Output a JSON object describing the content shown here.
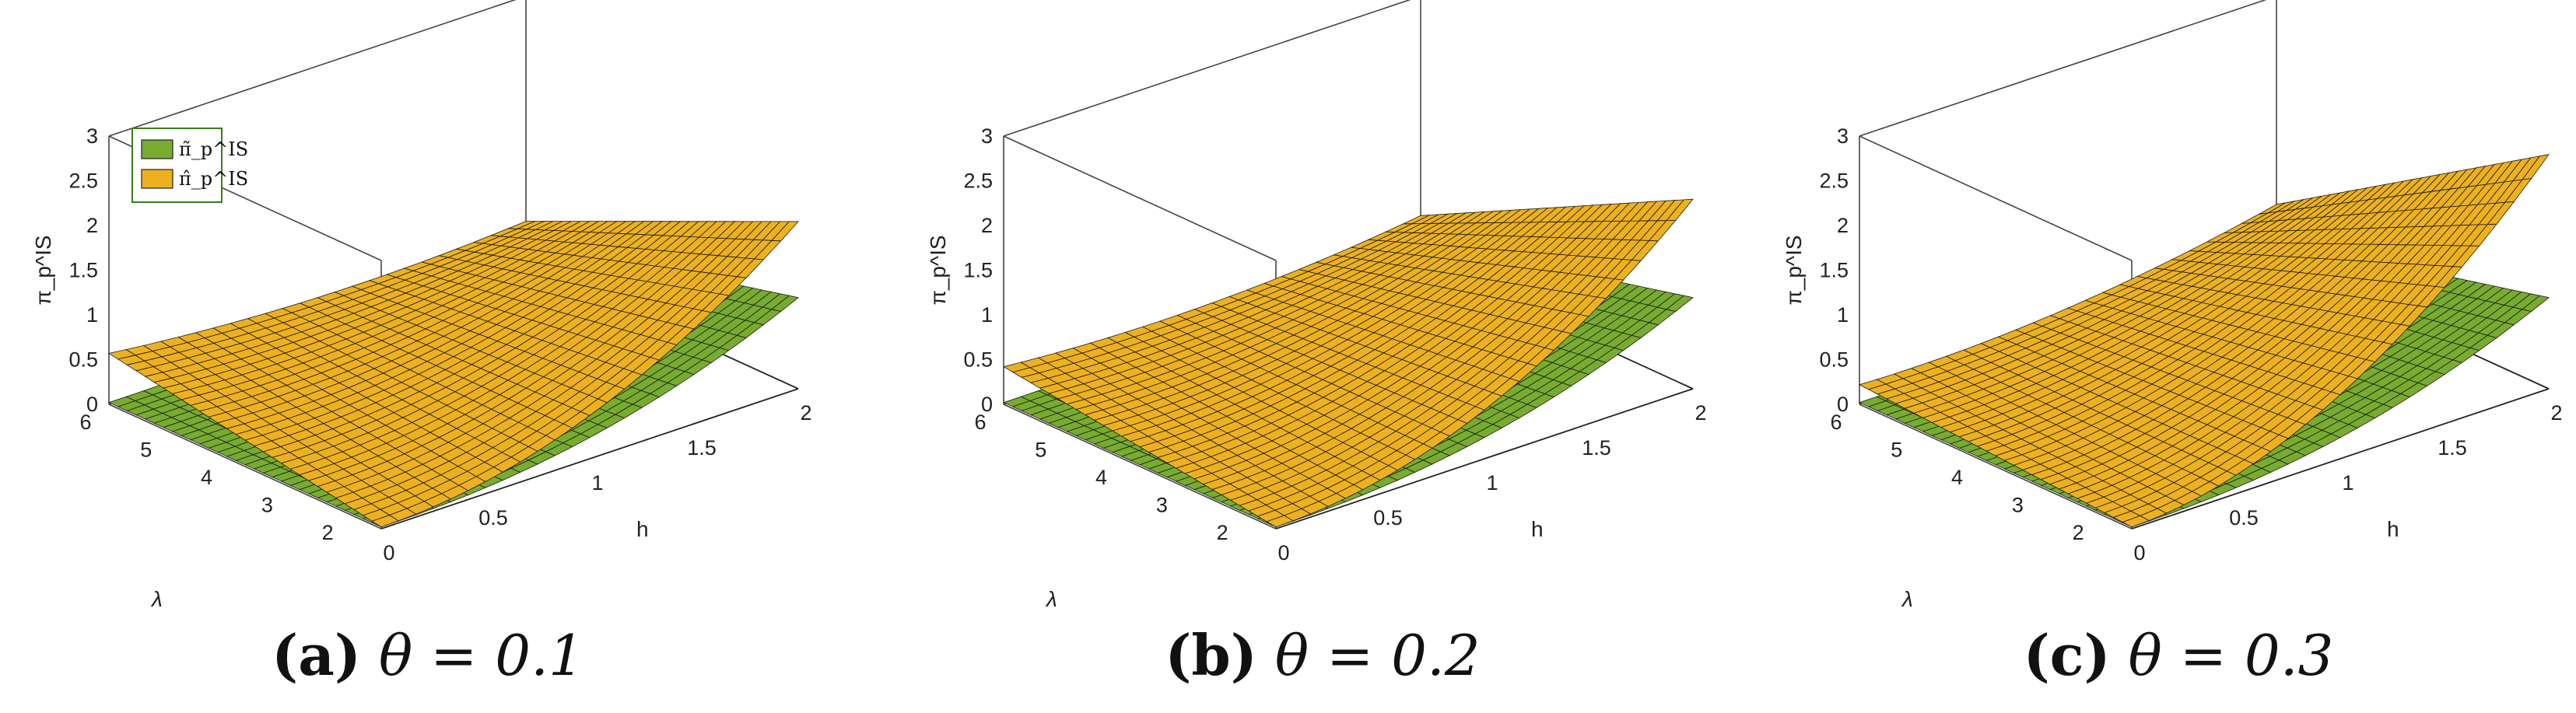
{
  "chart_data": [
    {
      "type": "surface3d",
      "panel": "a",
      "caption_letter": "(a)",
      "caption_theta": "θ = 0.1",
      "theta": 0.1,
      "xlabel": "h",
      "ylabel": "λ",
      "zlabel": "π_p^IS",
      "xlim": [
        0,
        2
      ],
      "ylim": [
        1.5,
        6
      ],
      "zlim": [
        0,
        3
      ],
      "xticks": [
        "0",
        "0.5",
        "1",
        "1.5",
        "2"
      ],
      "yticks": [
        "2",
        "3",
        "4",
        "5",
        "6"
      ],
      "zticks": [
        "0",
        "0.5",
        "1",
        "1.5",
        "2",
        "2.5",
        "3"
      ],
      "legend": {
        "position": "top-left",
        "entries": [
          "π̃_p^IS",
          "π̂_p^IS"
        ]
      },
      "series": [
        {
          "name": "π̃_p^IS",
          "color": "#77ac30",
          "z_at_h0": 0.0,
          "growth": 1.0,
          "power": 2.2
        },
        {
          "name": "π̂_p^IS",
          "color": "#edb120",
          "z_at_h0": 0.55,
          "growth": 1.85,
          "power": 2.0
        }
      ]
    },
    {
      "type": "surface3d",
      "panel": "b",
      "caption_letter": "(b)",
      "caption_theta": "θ = 0.2",
      "theta": 0.2,
      "xlabel": "h",
      "ylabel": "λ",
      "zlabel": "π_p^IS",
      "xlim": [
        0,
        2
      ],
      "ylim": [
        1.5,
        6
      ],
      "zlim": [
        0,
        3
      ],
      "xticks": [
        "0",
        "0.5",
        "1",
        "1.5",
        "2"
      ],
      "yticks": [
        "2",
        "3",
        "4",
        "5",
        "6"
      ],
      "zticks": [
        "0",
        "0.5",
        "1",
        "1.5",
        "2",
        "2.5",
        "3"
      ],
      "series": [
        {
          "name": "π̃_p^IS",
          "color": "#77ac30",
          "z_at_h0": 0.0,
          "growth": 1.0,
          "power": 2.2
        },
        {
          "name": "π̂_p^IS",
          "color": "#edb120",
          "z_at_h0": 0.4,
          "growth": 2.1,
          "power": 2.0
        }
      ]
    },
    {
      "type": "surface3d",
      "panel": "c",
      "caption_letter": "(c)",
      "caption_theta": "θ = 0.3",
      "theta": 0.3,
      "xlabel": "h",
      "ylabel": "λ",
      "zlabel": "π_p^IS",
      "xlim": [
        0,
        2
      ],
      "ylim": [
        1.5,
        6
      ],
      "zlim": [
        0,
        3
      ],
      "xticks": [
        "0",
        "0.5",
        "1",
        "1.5",
        "2"
      ],
      "yticks": [
        "2",
        "3",
        "4",
        "5",
        "6"
      ],
      "zticks": [
        "0",
        "0.5",
        "1",
        "1.5",
        "2",
        "2.5",
        "3"
      ],
      "series": [
        {
          "name": "π̃_p^IS",
          "color": "#77ac30",
          "z_at_h0": 0.0,
          "growth": 1.0,
          "power": 2.2
        },
        {
          "name": "π̂_p^IS",
          "color": "#edb120",
          "z_at_h0": 0.2,
          "growth": 2.6,
          "power": 1.9
        }
      ]
    }
  ]
}
